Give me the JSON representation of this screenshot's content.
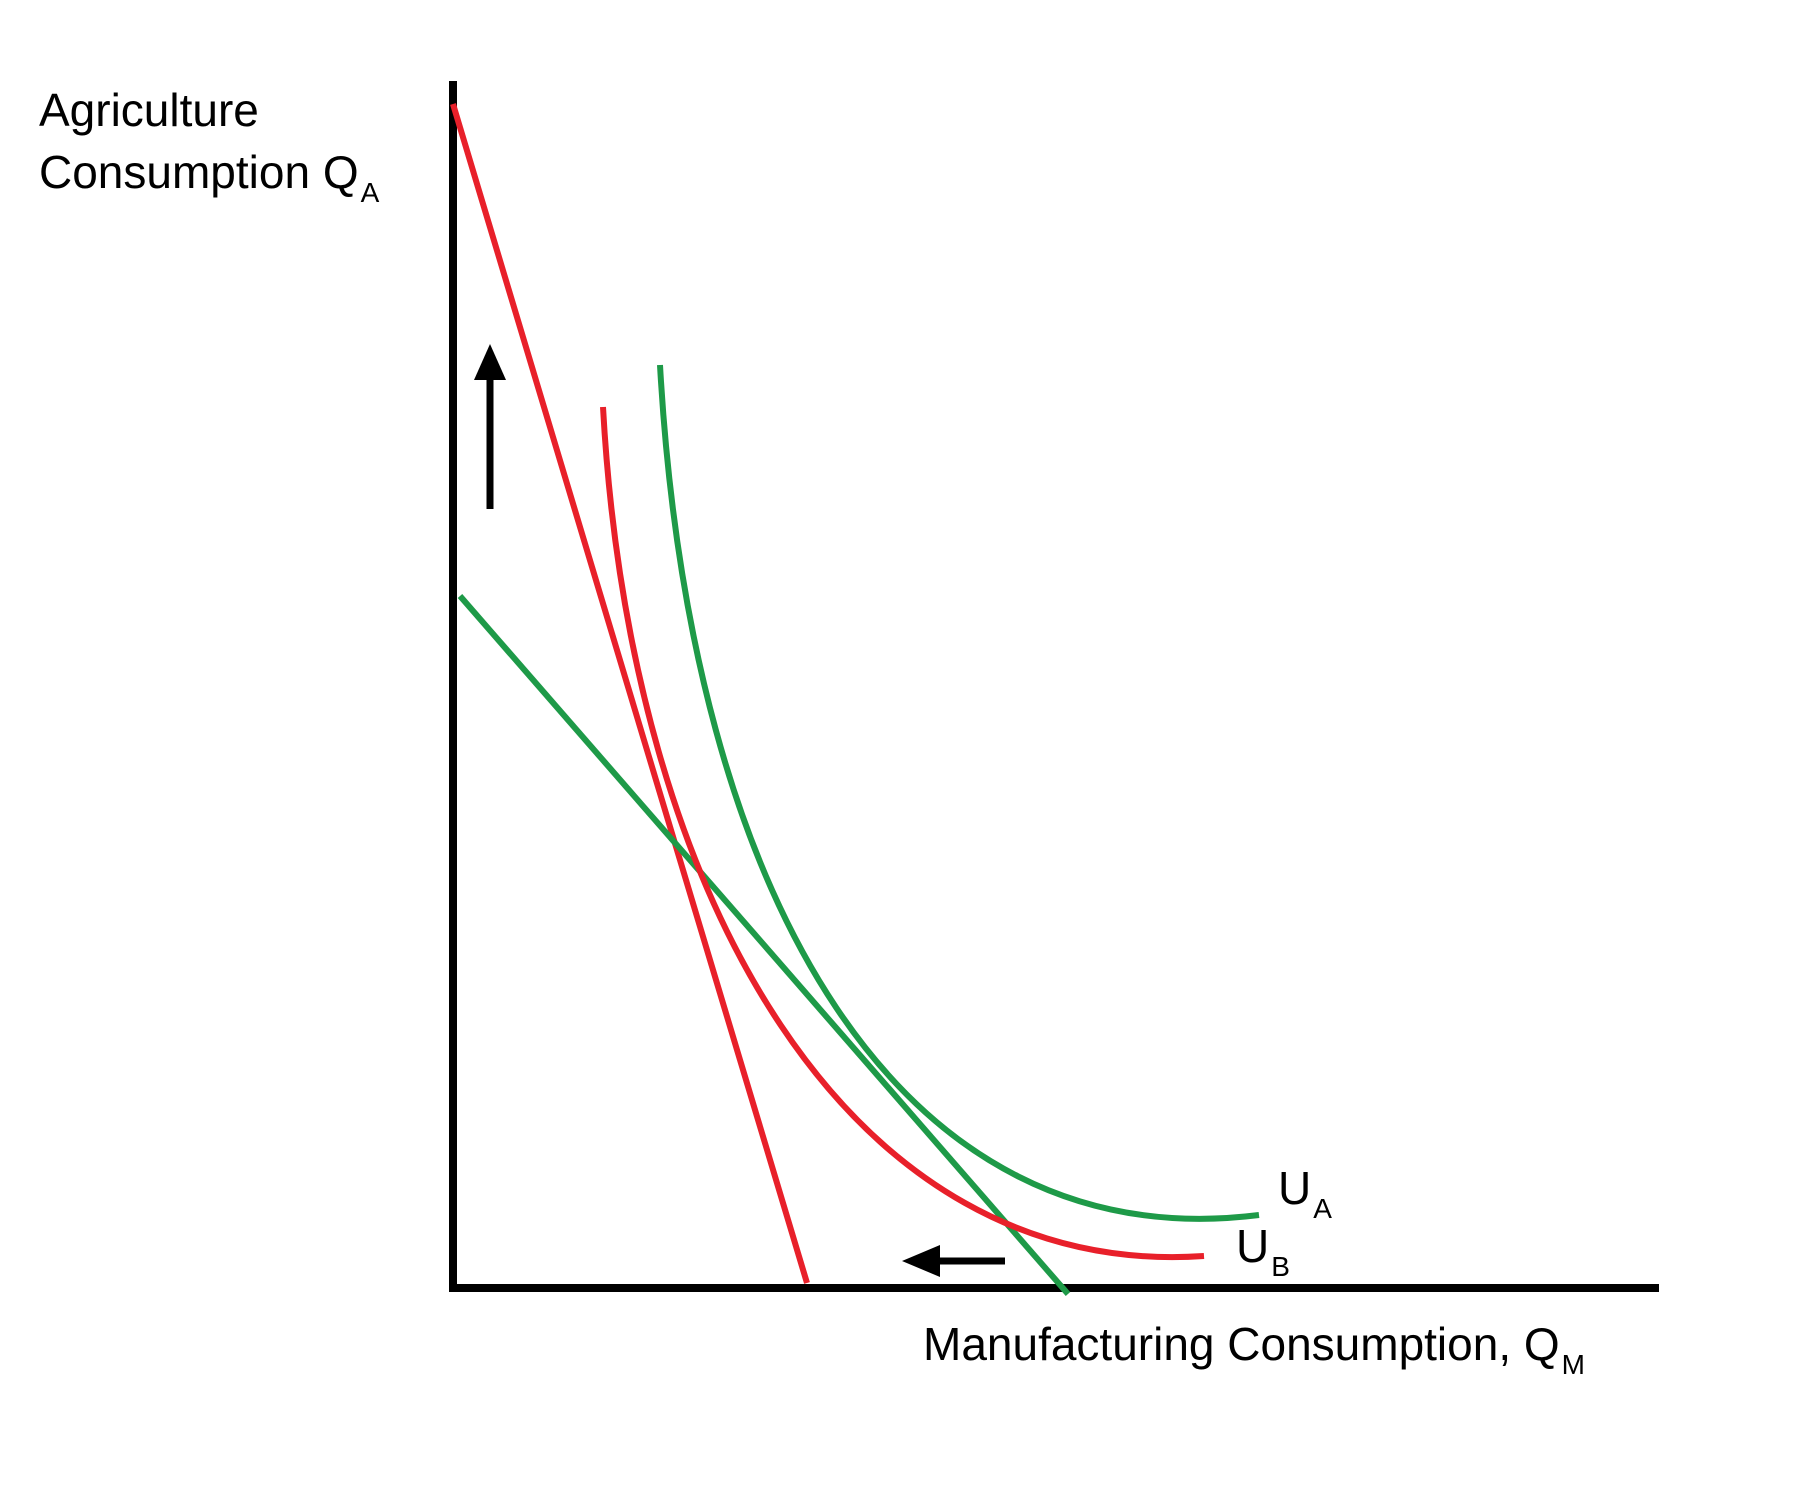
{
  "y_axis": {
    "line1": "Agriculture",
    "line2": "Consumption Q",
    "sub": "A"
  },
  "x_axis": {
    "label": "Manufacturing Consumption, Q",
    "sub": "M"
  },
  "curves": [
    {
      "label": "U",
      "sub": "A"
    },
    {
      "label": "U",
      "sub": "B"
    }
  ]
}
